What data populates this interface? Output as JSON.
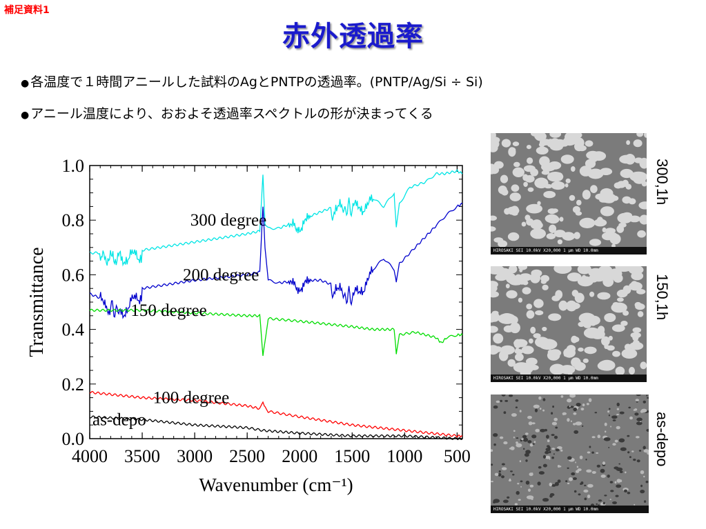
{
  "header": {
    "tag": "補足資料1",
    "title": "赤外透過率",
    "tag_color": "#ff0000",
    "title_color": "#1a1acc"
  },
  "bullets": [
    "各温度で１時間アニールした試料のAgとPNTPの透過率。(PNTP/Ag/Si ÷ Si)",
    "アニール温度により、おおよそ透過率スペクトルの形が決まってくる"
  ],
  "chart_data": {
    "type": "line",
    "xlabel": "Wavenumber (cm⁻¹)",
    "ylabel": "Transmittance",
    "xlim": [
      4000,
      450
    ],
    "ylim": [
      0.0,
      1.0
    ],
    "x_ticks": [
      4000,
      3500,
      3000,
      2500,
      2000,
      1500,
      1000,
      500
    ],
    "y_ticks": [
      "0.0",
      "0.2",
      "0.4",
      "0.6",
      "0.8",
      "1.0"
    ],
    "grid": false,
    "series": [
      {
        "name": "300 degree",
        "color": "#00e5e5",
        "points": [
          [
            4000,
            0.68
          ],
          [
            3700,
            0.68
          ],
          [
            3500,
            0.69
          ],
          [
            3000,
            0.72
          ],
          [
            2500,
            0.75
          ],
          [
            2380,
            0.76
          ],
          [
            2350,
            0.97
          ],
          [
            2330,
            0.78
          ],
          [
            2300,
            0.77
          ],
          [
            2200,
            0.77
          ],
          [
            2000,
            0.8
          ],
          [
            1800,
            0.83
          ],
          [
            1600,
            0.86
          ],
          [
            1500,
            0.86
          ],
          [
            1300,
            0.88
          ],
          [
            1200,
            0.85
          ],
          [
            1100,
            0.9
          ],
          [
            1080,
            0.77
          ],
          [
            1050,
            0.86
          ],
          [
            950,
            0.92
          ],
          [
            800,
            0.94
          ],
          [
            700,
            0.97
          ],
          [
            620,
            0.97
          ],
          [
            500,
            0.98
          ],
          [
            450,
            0.97
          ]
        ]
      },
      {
        "name": "200 degree",
        "color": "#0000cc",
        "points": [
          [
            4000,
            0.53
          ],
          [
            3800,
            0.5
          ],
          [
            3700,
            0.48
          ],
          [
            3500,
            0.55
          ],
          [
            3000,
            0.58
          ],
          [
            2500,
            0.6
          ],
          [
            2380,
            0.61
          ],
          [
            2350,
            0.85
          ],
          [
            2330,
            0.7
          ],
          [
            2300,
            0.58
          ],
          [
            2200,
            0.57
          ],
          [
            2000,
            0.58
          ],
          [
            1800,
            0.58
          ],
          [
            1600,
            0.55
          ],
          [
            1500,
            0.53
          ],
          [
            1300,
            0.62
          ],
          [
            1200,
            0.66
          ],
          [
            1100,
            0.62
          ],
          [
            1080,
            0.57
          ],
          [
            1050,
            0.64
          ],
          [
            900,
            0.7
          ],
          [
            700,
            0.78
          ],
          [
            600,
            0.82
          ],
          [
            500,
            0.85
          ],
          [
            450,
            0.86
          ]
        ]
      },
      {
        "name": "150 degree",
        "color": "#00dd00",
        "points": [
          [
            4000,
            0.47
          ],
          [
            3500,
            0.47
          ],
          [
            3000,
            0.46
          ],
          [
            2500,
            0.45
          ],
          [
            2380,
            0.45
          ],
          [
            2350,
            0.3
          ],
          [
            2330,
            0.36
          ],
          [
            2300,
            0.44
          ],
          [
            2000,
            0.43
          ],
          [
            1500,
            0.41
          ],
          [
            1300,
            0.4
          ],
          [
            1100,
            0.4
          ],
          [
            1080,
            0.31
          ],
          [
            1050,
            0.38
          ],
          [
            900,
            0.39
          ],
          [
            700,
            0.37
          ],
          [
            650,
            0.35
          ],
          [
            600,
            0.37
          ],
          [
            500,
            0.38
          ],
          [
            450,
            0.38
          ]
        ]
      },
      {
        "name": "100 degree",
        "color": "#ff0000",
        "points": [
          [
            4000,
            0.17
          ],
          [
            3500,
            0.15
          ],
          [
            3000,
            0.14
          ],
          [
            2500,
            0.12
          ],
          [
            2380,
            0.11
          ],
          [
            2350,
            0.13
          ],
          [
            2330,
            0.12
          ],
          [
            2300,
            0.1
          ],
          [
            2000,
            0.08
          ],
          [
            1500,
            0.05
          ],
          [
            1000,
            0.03
          ],
          [
            500,
            0.01
          ],
          [
            450,
            0.01
          ]
        ]
      },
      {
        "name": "as-depo",
        "color": "#000000",
        "points": [
          [
            4000,
            0.08
          ],
          [
            3500,
            0.07
          ],
          [
            3000,
            0.05
          ],
          [
            2500,
            0.04
          ],
          [
            2350,
            0.03
          ],
          [
            2000,
            0.02
          ],
          [
            1500,
            0.01
          ],
          [
            1000,
            0.01
          ],
          [
            500,
            0.0
          ],
          [
            450,
            0.0
          ]
        ]
      }
    ]
  },
  "sem_images": [
    {
      "label": "300,1h",
      "caption": "HIROSAKI      SEI      10.0kV   X20,000     1 μm      WD 10.0mm"
    },
    {
      "label": "150,1h",
      "caption": "HIROSAKI      SEI      10.0kV   X20,000     1 μm      WD 10.0mm"
    },
    {
      "label": "as-depo",
      "caption": "HIROSAKI      SEI      10.0kV   X20,000     1 μm      WD 10.0mm"
    }
  ]
}
